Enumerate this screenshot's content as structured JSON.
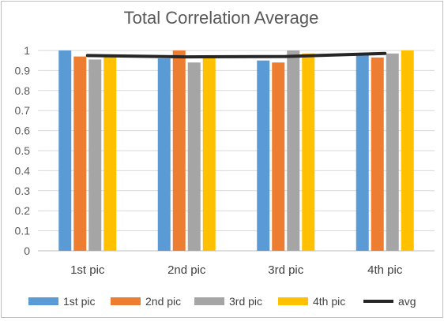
{
  "chart_data": {
    "type": "bar",
    "title": "Total Correlation Average",
    "categories": [
      "1st pic",
      "2nd pic",
      "3rd pic",
      "4th pic"
    ],
    "series": [
      {
        "name": "1st pic",
        "color": "#5b9bd5",
        "values": [
          1.0,
          0.96,
          0.95,
          0.98
        ]
      },
      {
        "name": "2nd pic",
        "color": "#ed7d31",
        "values": [
          0.97,
          1.0,
          0.94,
          0.965
        ]
      },
      {
        "name": "3rd pic",
        "color": "#a5a5a5",
        "values": [
          0.955,
          0.94,
          1.0,
          0.985
        ]
      },
      {
        "name": "4th pic",
        "color": "#ffc000",
        "values": [
          0.975,
          0.97,
          0.985,
          1.0
        ]
      }
    ],
    "line_series": {
      "name": "avg",
      "color": "#262626",
      "values": [
        0.975,
        0.968,
        0.97,
        0.985
      ]
    },
    "ylim": [
      0,
      1
    ],
    "yticks": [
      "0",
      "0.1",
      "0.2",
      "0.3",
      "0.4",
      "0.5",
      "0.6",
      "0.7",
      "0.8",
      "0.9",
      "1"
    ],
    "grid": true,
    "legend_position": "bottom"
  }
}
